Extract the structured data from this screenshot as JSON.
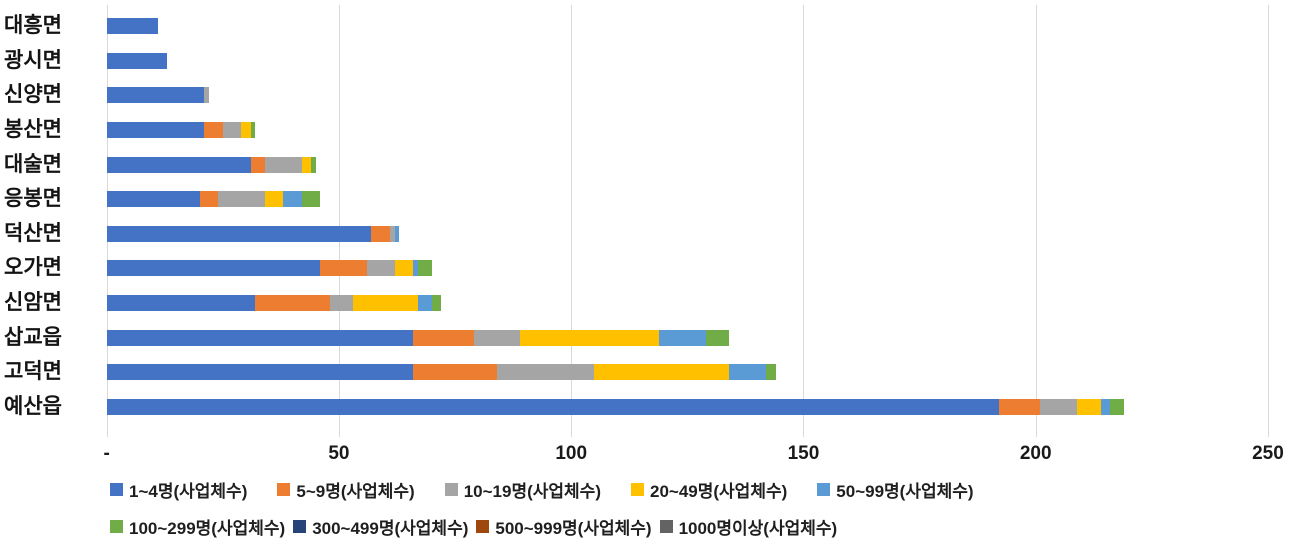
{
  "chart_data": {
    "type": "bar",
    "orientation": "horizontal-stacked",
    "title": "",
    "xlabel": "",
    "ylabel": "",
    "categories": [
      "대흥면",
      "광시면",
      "신양면",
      "봉산면",
      "대술면",
      "응봉면",
      "덕산면",
      "오가면",
      "신암면",
      "삽교읍",
      "고덕면",
      "예산읍"
    ],
    "series": [
      {
        "name": "1~4명(사업체수)",
        "color": "#4472C4",
        "values": [
          11,
          13,
          21,
          21,
          31,
          20,
          57,
          46,
          32,
          66,
          66,
          192
        ]
      },
      {
        "name": "5~9명(사업체수)",
        "color": "#ED7D31",
        "values": [
          0,
          0,
          0,
          4,
          3,
          4,
          4,
          10,
          16,
          13,
          18,
          9
        ]
      },
      {
        "name": "10~19명(사업체수)",
        "color": "#A5A5A5",
        "values": [
          0,
          0,
          1,
          4,
          8,
          10,
          1,
          6,
          5,
          10,
          21,
          8
        ]
      },
      {
        "name": "20~49명(사업체수)",
        "color": "#FFC000",
        "values": [
          0,
          0,
          0,
          2,
          2,
          4,
          0,
          4,
          14,
          30,
          29,
          5
        ]
      },
      {
        "name": "50~99명(사업체수)",
        "color": "#5B9BD5",
        "values": [
          0,
          0,
          0,
          0,
          0,
          4,
          1,
          1,
          3,
          10,
          8,
          2
        ]
      },
      {
        "name": "100~299명(사업체수)",
        "color": "#70AD47",
        "values": [
          0,
          0,
          0,
          1,
          1,
          4,
          0,
          3,
          2,
          5,
          2,
          3
        ]
      },
      {
        "name": "300~499명(사업체수)",
        "color": "#264478",
        "values": [
          0,
          0,
          0,
          0,
          0,
          0,
          0,
          0,
          0,
          0,
          0,
          0
        ]
      },
      {
        "name": "500~999명(사업체수)",
        "color": "#9E480E",
        "values": [
          0,
          0,
          0,
          0,
          0,
          0,
          0,
          0,
          0,
          0,
          0,
          0
        ]
      },
      {
        "name": "1000명이상(사업체수)",
        "color": "#636363",
        "values": [
          0,
          0,
          0,
          0,
          0,
          0,
          0,
          0,
          0,
          0,
          0,
          0
        ]
      }
    ],
    "x_ticks": [
      {
        "label": "-",
        "value": 0
      },
      {
        "label": "50",
        "value": 50
      },
      {
        "label": "100",
        "value": 100
      },
      {
        "label": "150",
        "value": 150
      },
      {
        "label": "200",
        "value": 200
      },
      {
        "label": "250",
        "value": 250
      }
    ],
    "xlim": [
      0,
      250
    ],
    "grid": "vertical",
    "gridline_color": "#D9D9D9",
    "legend_position": "bottom",
    "legend_rows": [
      [
        0,
        1,
        2,
        3,
        4
      ],
      [
        5,
        6,
        7,
        8
      ]
    ]
  }
}
